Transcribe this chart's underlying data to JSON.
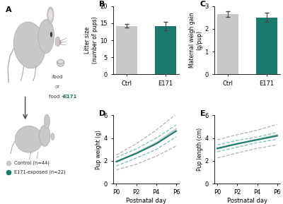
{
  "color_ctrl": "#c8c8c8",
  "color_e171": "#1a7a6e",
  "color_dashed_gray": "#b0b0b0",
  "color_dashed_teal": "#7bbdb8",
  "bar_B_ctrl": 14.2,
  "bar_B_e171": 14.2,
  "err_B_ctrl": 0.5,
  "err_B_e171": 1.2,
  "bar_C_ctrl": 2.65,
  "bar_C_e171": 2.5,
  "err_C_ctrl": 0.12,
  "err_C_e171": 0.2,
  "postnatal_days": [
    0,
    2,
    4,
    6
  ],
  "D_ctrl_mean": [
    1.95,
    2.7,
    3.6,
    4.8
  ],
  "D_ctrl_upper": [
    2.5,
    3.5,
    4.7,
    6.1
  ],
  "D_ctrl_lower": [
    1.2,
    1.7,
    2.4,
    3.3
  ],
  "D_e171_mean": [
    1.92,
    2.65,
    3.5,
    4.62
  ],
  "D_e171_upper": [
    2.3,
    3.05,
    4.0,
    5.15
  ],
  "D_e171_lower": [
    1.55,
    2.25,
    3.0,
    4.1
  ],
  "E_ctrl_mean": [
    3.05,
    3.5,
    3.9,
    4.3
  ],
  "E_ctrl_upper": [
    3.85,
    4.3,
    4.7,
    5.2
  ],
  "E_ctrl_lower": [
    2.25,
    2.7,
    3.1,
    3.4
  ],
  "E_e171_mean": [
    3.1,
    3.5,
    3.85,
    4.2
  ],
  "E_e171_upper": [
    3.4,
    3.8,
    4.1,
    4.5
  ],
  "E_e171_lower": [
    2.8,
    3.2,
    3.6,
    3.9
  ],
  "legend_ctrl": "Control (n=44)",
  "legend_e171": "E171-exposed (n=22)"
}
